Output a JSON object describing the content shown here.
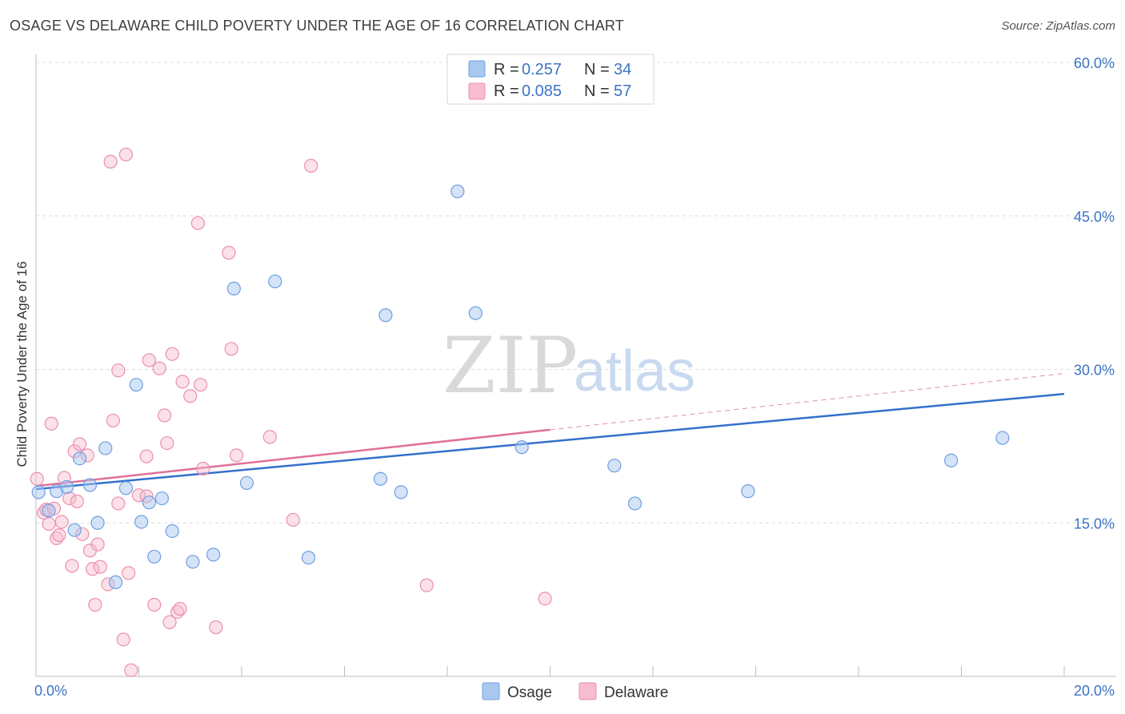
{
  "title": "OSAGE VS DELAWARE CHILD POVERTY UNDER THE AGE OF 16 CORRELATION CHART",
  "source": "Source: ZipAtlas.com",
  "watermark": {
    "zip": "ZIP",
    "atlas": "atlas"
  },
  "colors": {
    "osage_fill": "#a9c8f0",
    "osage_stroke": "#6f9ee0",
    "osage_line": "#3370cc",
    "delaware_fill": "#f7bccd",
    "delaware_stroke": "#ec8fac",
    "delaware_line": "#e07099",
    "tick_text": "#3b74c4",
    "grid": "#dcdcdc"
  },
  "legend": {
    "rows": [
      {
        "r_label": "R =",
        "r_value": "0.257",
        "n_label": "N =",
        "n_value": "34"
      },
      {
        "r_label": "R =",
        "r_value": "0.085",
        "n_label": "N =",
        "n_value": "57"
      }
    ]
  },
  "bottom_legend": {
    "osage": "Osage",
    "delaware": "Delaware"
  },
  "chart_data": {
    "type": "scatter",
    "title": "OSAGE VS DELAWARE CHILD POVERTY UNDER THE AGE OF 16 CORRELATION CHART",
    "xlabel": "",
    "ylabel": "Child Poverty Under the Age of 16",
    "xlim": [
      0,
      20
    ],
    "ylim": [
      0,
      60
    ],
    "x_tick_labels": [
      "0.0%",
      "20.0%"
    ],
    "y_ticks": [
      15,
      30,
      45,
      60
    ],
    "y_tick_labels": [
      "15.0%",
      "30.0%",
      "45.0%",
      "60.0%"
    ],
    "grid": true,
    "legend_position": "top-center",
    "series": [
      {
        "name": "Osage",
        "points": [
          [
            0.05,
            18.0
          ],
          [
            0.25,
            16.2
          ],
          [
            0.4,
            18.1
          ],
          [
            0.6,
            18.5
          ],
          [
            0.75,
            14.3
          ],
          [
            0.85,
            21.3
          ],
          [
            1.05,
            18.7
          ],
          [
            1.2,
            15.0
          ],
          [
            1.35,
            22.3
          ],
          [
            1.55,
            9.2
          ],
          [
            1.75,
            18.4
          ],
          [
            1.95,
            28.5
          ],
          [
            2.05,
            15.1
          ],
          [
            2.2,
            17.0
          ],
          [
            2.3,
            11.7
          ],
          [
            2.45,
            17.4
          ],
          [
            2.65,
            14.2
          ],
          [
            3.05,
            11.2
          ],
          [
            3.45,
            11.9
          ],
          [
            3.85,
            37.9
          ],
          [
            4.1,
            18.9
          ],
          [
            4.65,
            38.6
          ],
          [
            5.3,
            11.6
          ],
          [
            6.7,
            19.3
          ],
          [
            6.8,
            35.3
          ],
          [
            7.1,
            18.0
          ],
          [
            8.2,
            47.4
          ],
          [
            8.55,
            35.5
          ],
          [
            9.45,
            22.4
          ],
          [
            11.25,
            20.6
          ],
          [
            11.65,
            16.9
          ],
          [
            13.85,
            18.1
          ],
          [
            17.8,
            21.1
          ],
          [
            18.8,
            23.3
          ]
        ],
        "trend": {
          "x": [
            0,
            20
          ],
          "y": [
            18.3,
            27.6
          ]
        }
      },
      {
        "name": "Delaware",
        "points": [
          [
            0.02,
            19.3
          ],
          [
            0.15,
            16.0
          ],
          [
            0.2,
            16.3
          ],
          [
            0.25,
            14.9
          ],
          [
            0.3,
            24.7
          ],
          [
            0.35,
            16.4
          ],
          [
            0.4,
            13.5
          ],
          [
            0.45,
            13.8
          ],
          [
            0.5,
            15.1
          ],
          [
            0.55,
            19.4
          ],
          [
            0.65,
            17.4
          ],
          [
            0.7,
            10.8
          ],
          [
            0.75,
            22.0
          ],
          [
            0.8,
            17.1
          ],
          [
            0.85,
            22.7
          ],
          [
            0.9,
            13.9
          ],
          [
            1.0,
            21.6
          ],
          [
            1.05,
            12.3
          ],
          [
            1.1,
            10.5
          ],
          [
            1.15,
            7.0
          ],
          [
            1.2,
            12.9
          ],
          [
            1.25,
            10.7
          ],
          [
            1.4,
            9.0
          ],
          [
            1.45,
            50.3
          ],
          [
            1.5,
            25.0
          ],
          [
            1.6,
            16.9
          ],
          [
            1.6,
            29.9
          ],
          [
            1.7,
            3.6
          ],
          [
            1.75,
            51.0
          ],
          [
            1.8,
            10.1
          ],
          [
            1.85,
            0.6
          ],
          [
            2.0,
            17.7
          ],
          [
            2.15,
            17.6
          ],
          [
            2.15,
            21.5
          ],
          [
            2.2,
            30.9
          ],
          [
            2.3,
            7.0
          ],
          [
            2.4,
            30.1
          ],
          [
            2.5,
            25.5
          ],
          [
            2.55,
            22.8
          ],
          [
            2.6,
            5.3
          ],
          [
            2.65,
            31.5
          ],
          [
            2.75,
            6.3
          ],
          [
            2.8,
            6.6
          ],
          [
            2.85,
            28.8
          ],
          [
            3.0,
            27.4
          ],
          [
            3.15,
            44.3
          ],
          [
            3.2,
            28.5
          ],
          [
            3.25,
            20.3
          ],
          [
            3.5,
            4.8
          ],
          [
            3.75,
            41.4
          ],
          [
            3.8,
            32.0
          ],
          [
            3.9,
            21.6
          ],
          [
            4.55,
            23.4
          ],
          [
            5.0,
            15.3
          ],
          [
            5.35,
            49.9
          ],
          [
            7.6,
            8.9
          ],
          [
            9.9,
            7.6
          ]
        ],
        "trend": {
          "x": [
            0,
            10
          ],
          "y": [
            18.6,
            24.1
          ]
        },
        "trend_extension": {
          "x": [
            10,
            20
          ],
          "y": [
            24.1,
            29.6
          ]
        }
      }
    ]
  }
}
